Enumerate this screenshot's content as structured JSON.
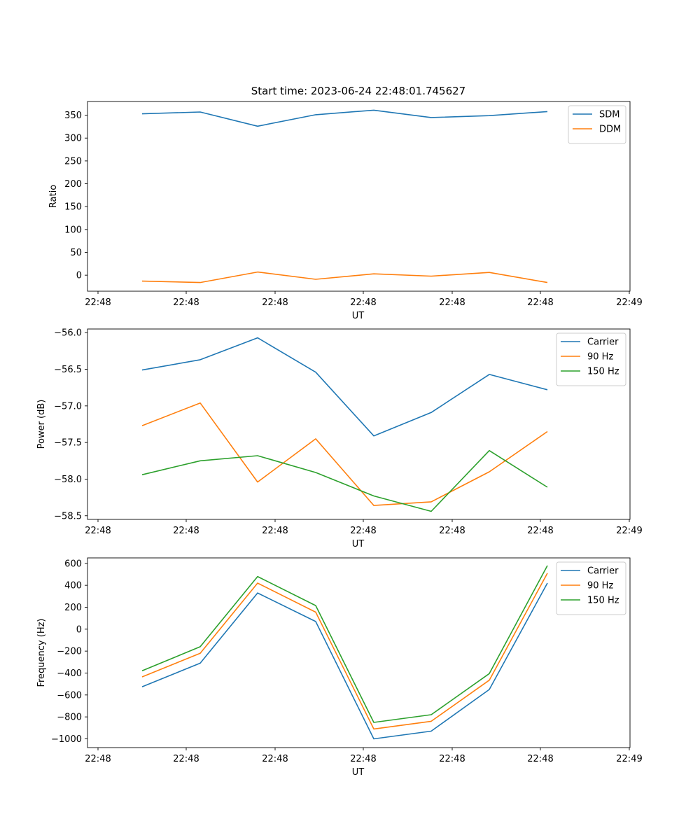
{
  "figure": {
    "title": "Start time: 2023-06-24 22:48:01.745627"
  },
  "chart_data": [
    {
      "type": "line",
      "ylabel": "Ratio",
      "xlabel": "UT",
      "x_tick_labels": [
        "22:48",
        "22:48",
        "22:48",
        "22:48",
        "22:48",
        "22:48",
        "22:48"
      ],
      "x_tick_end_label": "22:49",
      "ylim": [
        -35,
        380
      ],
      "yticks": [
        0,
        50,
        100,
        150,
        200,
        250,
        300,
        350
      ],
      "ytick_labels": [
        "0",
        "50",
        "100",
        "150",
        "200",
        "250",
        "300",
        "350"
      ],
      "legend_position": "upper-right",
      "series": [
        {
          "name": "SDM",
          "color": "#1f77b4",
          "values": [
            353,
            357,
            326,
            351,
            361,
            345,
            349,
            358
          ]
        },
        {
          "name": "DDM",
          "color": "#ff7f0e",
          "values": [
            -13,
            -16,
            7,
            -9,
            3,
            -2,
            6,
            -16
          ]
        }
      ]
    },
    {
      "type": "line",
      "ylabel": "Power (dB)",
      "xlabel": "UT",
      "x_tick_labels": [
        "22:48",
        "22:48",
        "22:48",
        "22:48",
        "22:48",
        "22:48",
        "22:48"
      ],
      "x_tick_end_label": "22:49",
      "ylim": [
        -58.55,
        -55.95
      ],
      "yticks": [
        -56.0,
        -56.5,
        -57.0,
        -57.5,
        -58.0,
        -58.5
      ],
      "ytick_labels": [
        "−56.0",
        "−56.5",
        "−57.0",
        "−57.5",
        "−58.0",
        "−58.5"
      ],
      "legend_position": "upper-right",
      "series": [
        {
          "name": "Carrier",
          "color": "#1f77b4",
          "values": [
            -56.51,
            -56.37,
            -56.07,
            -56.54,
            -57.41,
            -57.09,
            -56.57,
            -56.78
          ]
        },
        {
          "name": "90 Hz",
          "color": "#ff7f0e",
          "values": [
            -57.27,
            -56.96,
            -58.04,
            -57.45,
            -58.36,
            -58.31,
            -57.9,
            -57.35
          ]
        },
        {
          "name": "150 Hz",
          "color": "#2ca02c",
          "values": [
            -57.94,
            -57.75,
            -57.68,
            -57.91,
            -58.23,
            -58.44,
            -57.61,
            -58.11
          ]
        }
      ]
    },
    {
      "type": "line",
      "ylabel": "Frequency (Hz)",
      "xlabel": "UT",
      "x_tick_labels": [
        "22:48",
        "22:48",
        "22:48",
        "22:48",
        "22:48",
        "22:48",
        "22:48"
      ],
      "x_tick_end_label": "22:49",
      "ylim": [
        -1080,
        650
      ],
      "yticks": [
        600,
        400,
        200,
        0,
        -200,
        -400,
        -600,
        -800,
        -1000
      ],
      "ytick_labels": [
        "600",
        "400",
        "200",
        "0",
        "−200",
        "−400",
        "−600",
        "−800",
        "−1000"
      ],
      "legend_position": "upper-right",
      "series": [
        {
          "name": "Carrier",
          "color": "#1f77b4",
          "values": [
            -525,
            -310,
            330,
            70,
            -1000,
            -930,
            -550,
            420
          ]
        },
        {
          "name": "90 Hz",
          "color": "#ff7f0e",
          "values": [
            -435,
            -220,
            420,
            155,
            -910,
            -840,
            -465,
            510
          ]
        },
        {
          "name": "150 Hz",
          "color": "#2ca02c",
          "values": [
            -380,
            -160,
            480,
            215,
            -850,
            -780,
            -405,
            580
          ]
        }
      ]
    }
  ]
}
